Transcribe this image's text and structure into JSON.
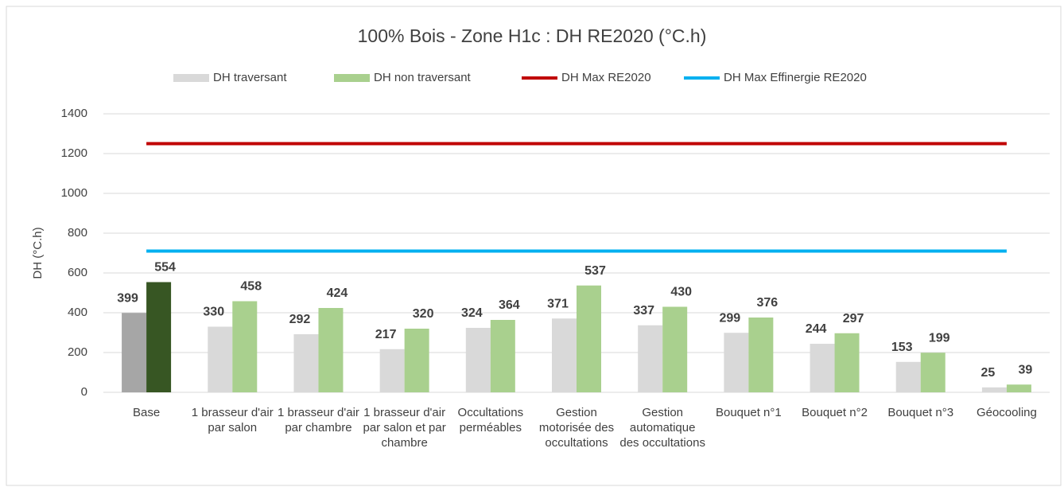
{
  "chart_data": {
    "type": "bar",
    "title": "100% Bois - Zone H1c : DH RE2020 (°C.h)",
    "y_label": "DH (°C.h)",
    "categories": [
      "Base",
      "1 brasseur d'air par salon",
      "1 brasseur d'air par chambre",
      "1 brasseur d'air par salon et par chambre",
      "Occultations perméables",
      "Gestion motorisée des occultations",
      "Gestion automatique des occultations",
      "Bouquet n°1",
      "Bouquet n°2",
      "Bouquet n°3",
      "Géocooling"
    ],
    "series": [
      {
        "name": "DH traversant",
        "type": "bar",
        "color": "#d9d9d9",
        "colors": [
          "#a6a6a6",
          "#d9d9d9",
          "#d9d9d9",
          "#d9d9d9",
          "#d9d9d9",
          "#d9d9d9",
          "#d9d9d9",
          "#d9d9d9",
          "#d9d9d9",
          "#d9d9d9",
          "#d9d9d9"
        ],
        "values": [
          399,
          330,
          292,
          217,
          324,
          371,
          337,
          299,
          244,
          153,
          25
        ]
      },
      {
        "name": "DH non traversant",
        "type": "bar",
        "color": "#a9d08e",
        "colors": [
          "#375623",
          "#a9d08e",
          "#a9d08e",
          "#a9d08e",
          "#a9d08e",
          "#a9d08e",
          "#a9d08e",
          "#a9d08e",
          "#a9d08e",
          "#a9d08e",
          "#a9d08e"
        ],
        "values": [
          554,
          458,
          424,
          320,
          364,
          537,
          430,
          376,
          297,
          199,
          39
        ]
      },
      {
        "name": "DH Max RE2020",
        "type": "line",
        "color": "#c00000",
        "values": [
          1250,
          1250,
          1250,
          1250,
          1250,
          1250,
          1250,
          1250,
          1250,
          1250,
          1250
        ]
      },
      {
        "name": "DH Max Effinergie RE2020",
        "type": "line",
        "color": "#00b0f0",
        "values": [
          710,
          710,
          710,
          710,
          710,
          710,
          710,
          710,
          710,
          710,
          710
        ]
      }
    ],
    "ylim": [
      0,
      1400
    ],
    "yticks": [
      0,
      200,
      400,
      600,
      800,
      1000,
      1200,
      1400
    ],
    "grid": true,
    "legend": "top"
  }
}
